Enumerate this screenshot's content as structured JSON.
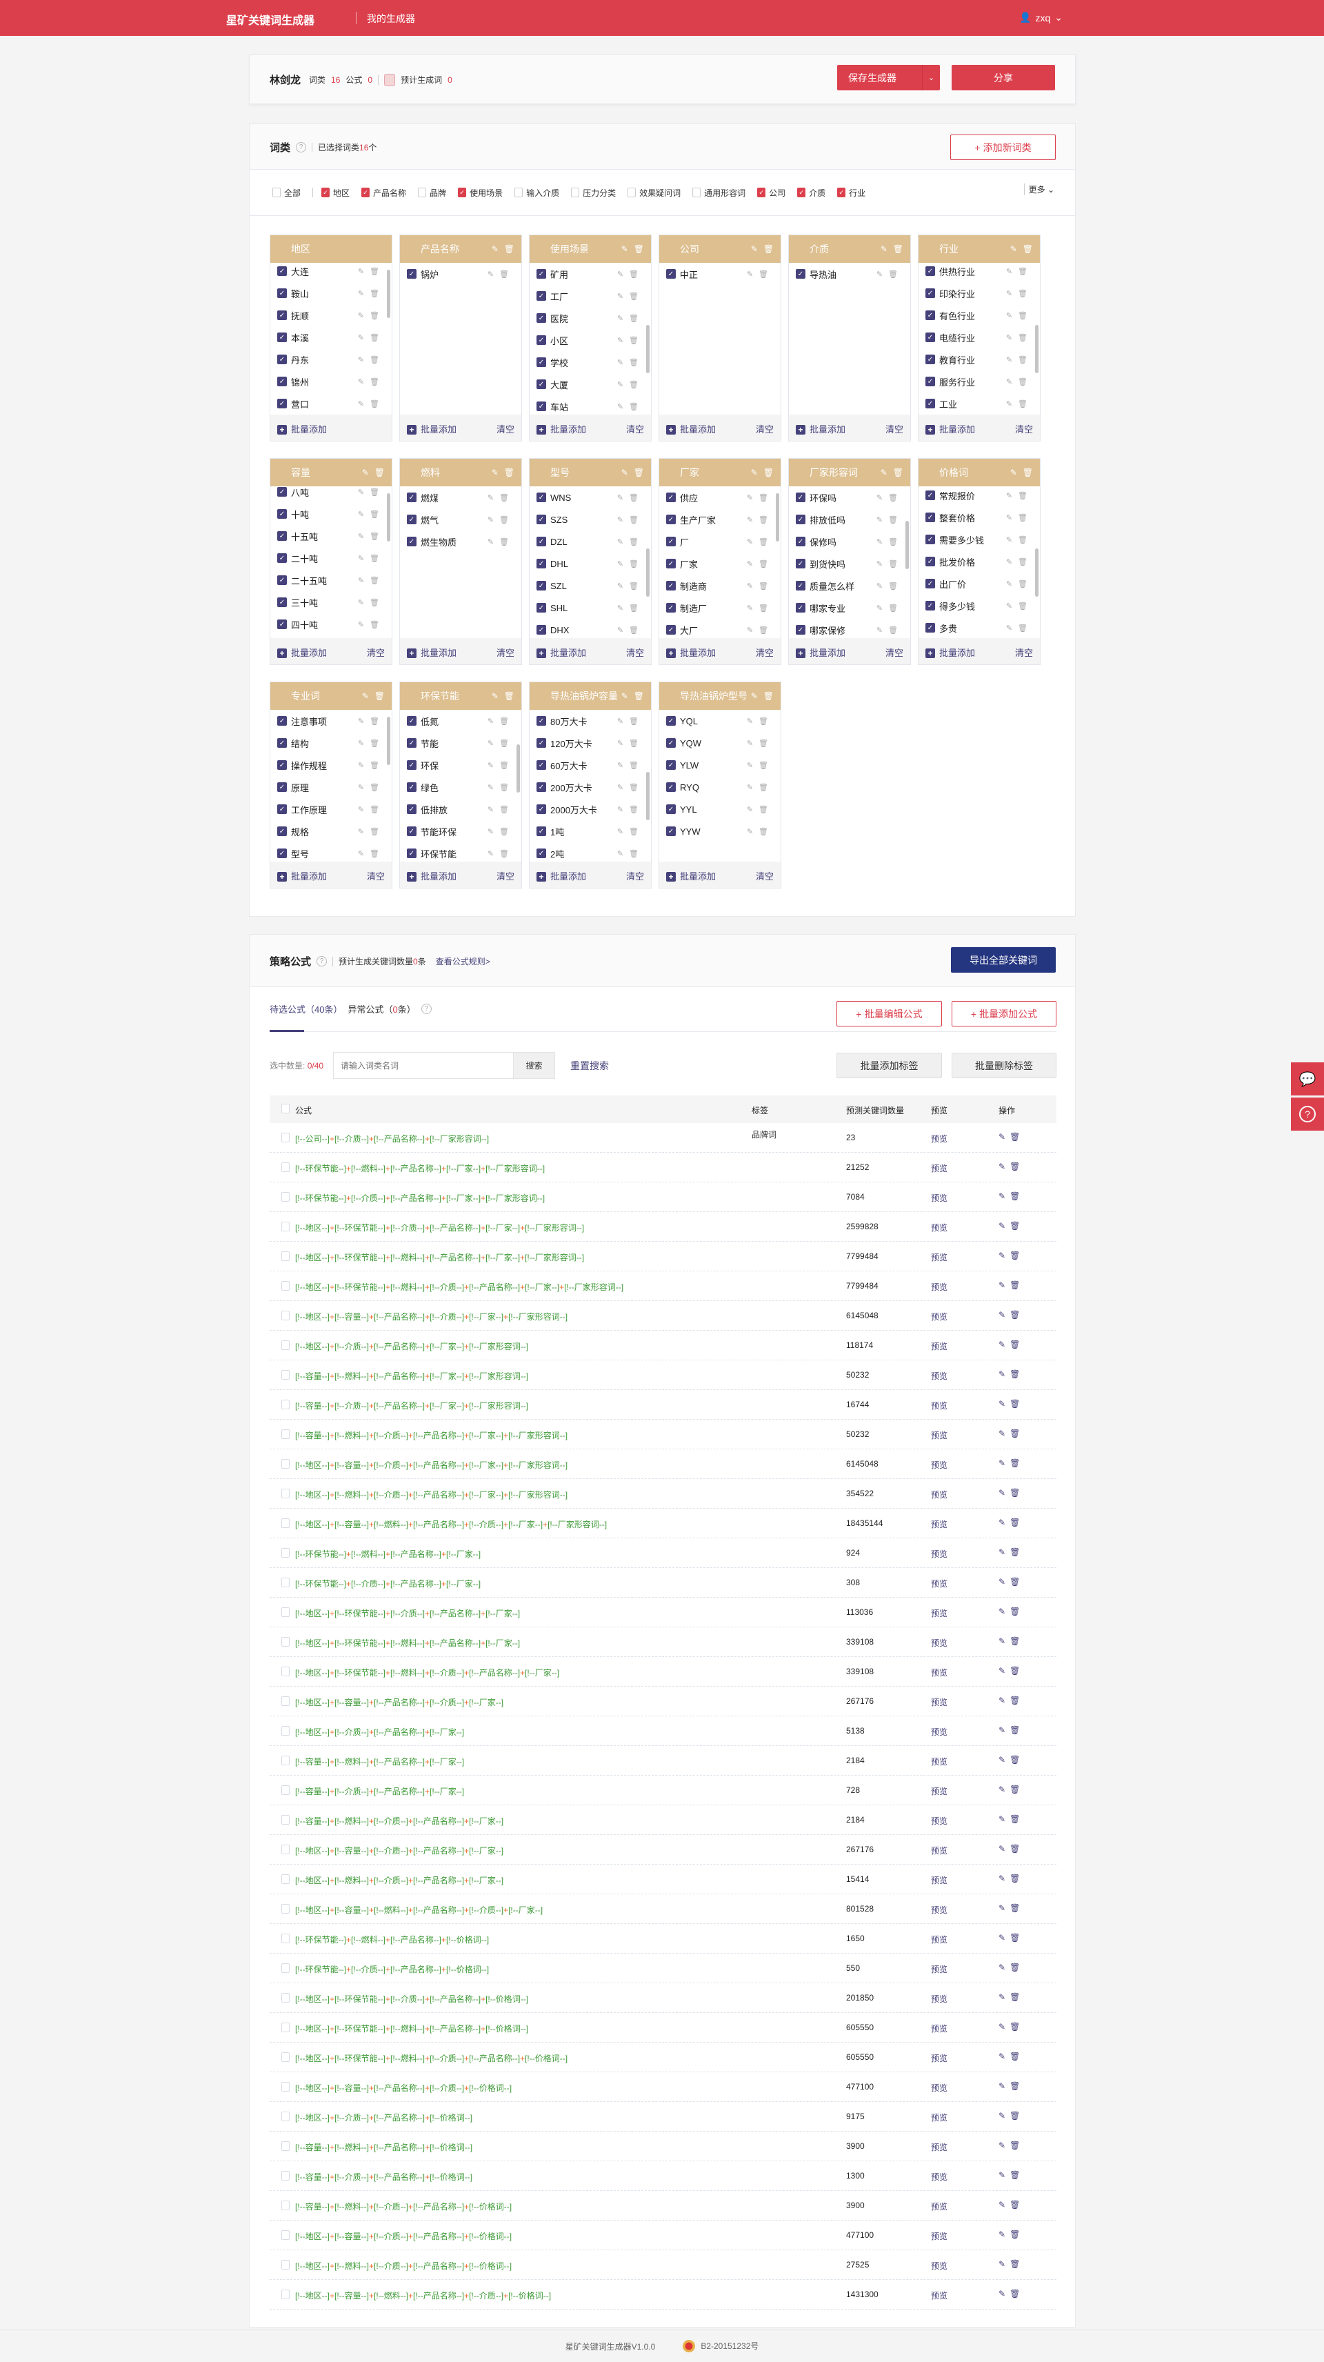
{
  "header": {
    "app_title": "星矿关键词生成器",
    "nav_link": "我的生成器",
    "user_name": "zxq",
    "accent_color": "#dc3f4c"
  },
  "generator": {
    "name": "林剑龙",
    "word_class_label": "词类",
    "word_class_count": "16",
    "formula_label": "公式",
    "formula_count": "0",
    "predicted_label": "预计生成词",
    "predicted_count": "0",
    "save_button": "保存生成器",
    "share_button": "分享"
  },
  "word_classes": {
    "title": "词类",
    "selected_text_prefix": "已选择词类",
    "selected_count": "16",
    "selected_text_suffix": "个",
    "add_button": "添加新词类",
    "more_label": "更多",
    "filters": [
      {
        "label": "全部",
        "checked": false
      },
      {
        "label": "地区",
        "checked": true
      },
      {
        "label": "产品名称",
        "checked": true
      },
      {
        "label": "品牌",
        "checked": false
      },
      {
        "label": "使用场景",
        "checked": true
      },
      {
        "label": "输入介质",
        "checked": false
      },
      {
        "label": "压力分类",
        "checked": false
      },
      {
        "label": "效果疑问词",
        "checked": false
      },
      {
        "label": "通用形容词",
        "checked": false
      },
      {
        "label": "公司",
        "checked": true
      },
      {
        "label": "介质",
        "checked": true
      },
      {
        "label": "行业",
        "checked": true
      }
    ],
    "batch_add_label": "批量添加",
    "clear_label": "清空",
    "cards": [
      {
        "title": "地区",
        "header_icons": false,
        "clear": false,
        "items": [
          "大连",
          "鞍山",
          "抚顺",
          "本溪",
          "丹东",
          "锦州",
          "营口"
        ]
      },
      {
        "title": "产品名称",
        "header_icons": true,
        "clear": true,
        "items": [
          "锅炉"
        ]
      },
      {
        "title": "使用场景",
        "header_icons": true,
        "clear": true,
        "items": [
          "矿用",
          "工厂",
          "医院",
          "小区",
          "学校",
          "大厦",
          "车站"
        ]
      },
      {
        "title": "公司",
        "header_icons": true,
        "clear": true,
        "items": [
          "中正"
        ]
      },
      {
        "title": "介质",
        "header_icons": true,
        "clear": true,
        "items": [
          "导热油"
        ]
      },
      {
        "title": "行业",
        "header_icons": true,
        "clear": true,
        "items": [
          "供热行业",
          "印染行业",
          "有色行业",
          "电缆行业",
          "教育行业",
          "服务行业",
          "工业"
        ]
      },
      {
        "title": "容量",
        "header_icons": true,
        "clear": true,
        "items": [
          "八吨",
          "十吨",
          "十五吨",
          "二十吨",
          "二十五吨",
          "三十吨",
          "四十吨"
        ]
      },
      {
        "title": "燃料",
        "header_icons": true,
        "clear": true,
        "items": [
          "燃煤",
          "燃气",
          "燃生物质"
        ]
      },
      {
        "title": "型号",
        "header_icons": true,
        "clear": true,
        "items": [
          "WNS",
          "SZS",
          "DZL",
          "DHL",
          "SZL",
          "SHL",
          "DHX"
        ]
      },
      {
        "title": "厂家",
        "header_icons": true,
        "clear": true,
        "items": [
          "供应",
          "生产厂家",
          "厂",
          "厂家",
          "制造商",
          "制造厂",
          "大厂"
        ]
      },
      {
        "title": "厂家形容词",
        "header_icons": true,
        "clear": true,
        "items": [
          "环保吗",
          "排放低吗",
          "保修吗",
          "到货快吗",
          "质量怎么样",
          "哪家专业",
          "哪家保修"
        ]
      },
      {
        "title": "价格词",
        "header_icons": true,
        "clear": true,
        "items": [
          "常规报价",
          "整套价格",
          "需要多少钱",
          "批发价格",
          "出厂价",
          "得多少钱",
          "多贵"
        ]
      },
      {
        "title": "专业词",
        "header_icons": true,
        "clear": true,
        "items": [
          "注意事项",
          "结构",
          "操作规程",
          "原理",
          "工作原理",
          "规格",
          "型号"
        ]
      },
      {
        "title": "环保节能",
        "header_icons": true,
        "clear": true,
        "items": [
          "低氮",
          "节能",
          "环保",
          "绿色",
          "低排放",
          "节能环保",
          "环保节能"
        ]
      },
      {
        "title": "导热油锅炉容量",
        "header_icons": true,
        "clear": true,
        "items": [
          "80万大卡",
          "120万大卡",
          "60万大卡",
          "200万大卡",
          "2000万大卡",
          "1吨",
          "2吨"
        ]
      },
      {
        "title": "导热油锅炉型号",
        "header_icons": true,
        "clear": true,
        "items": [
          "YQL",
          "YQW",
          "YLW",
          "RYQ",
          "YYL",
          "YYW"
        ]
      }
    ],
    "card_header_color": "#ddbf90",
    "checkbox_color": "#45417a"
  },
  "strategy": {
    "title": "策略公式",
    "predicted_prefix": "预计生成关键词数量",
    "predicted_count": "0",
    "predicted_suffix": "条",
    "rules_link": "查看公式规则>",
    "export_button": "导出全部关键词",
    "export_color": "#253680",
    "tab_pending": "待选公式（40条）",
    "tab_abnormal_prefix": "异常公式（",
    "tab_abnormal_count": "0",
    "tab_abnormal_suffix": "条）",
    "batch_edit_button": "批量编辑公式",
    "batch_add_button": "批量添加公式",
    "selected_label": "选中数量:",
    "selected_value": "0/40",
    "search_placeholder": "请输入词类名词",
    "search_button": "搜索",
    "reset_search": "重置搜索",
    "batch_add_tag": "批量添加标签",
    "batch_delete_tag": "批量删除标签",
    "columns": {
      "formula": "公式",
      "tag": "标签",
      "count": "预测关键词数量",
      "preview": "预览",
      "ops": "操作"
    },
    "preview_label": "预览",
    "rows": [
      {
        "formula": "[!--公司--]+[!--介质--]+[!--产品名称--]+[!--厂家形容词--]",
        "tag": "品牌词",
        "count": "23"
      },
      {
        "formula": "[!--环保节能--]+[!--燃料--]+[!--产品名称--]+[!--厂家--]+[!--厂家形容词--]",
        "tag": "",
        "count": "21252"
      },
      {
        "formula": "[!--环保节能--]+[!--介质--]+[!--产品名称--]+[!--厂家--]+[!--厂家形容词--]",
        "tag": "",
        "count": "7084"
      },
      {
        "formula": "[!--地区--]+[!--环保节能--]+[!--介质--]+[!--产品名称--]+[!--厂家--]+[!--厂家形容词--]",
        "tag": "",
        "count": "2599828"
      },
      {
        "formula": "[!--地区--]+[!--环保节能--]+[!--燃料--]+[!--产品名称--]+[!--厂家--]+[!--厂家形容词--]",
        "tag": "",
        "count": "7799484"
      },
      {
        "formula": "[!--地区--]+[!--环保节能--]+[!--燃料--]+[!--介质--]+[!--产品名称--]+[!--厂家--]+[!--厂家形容词--]",
        "tag": "",
        "count": "7799484"
      },
      {
        "formula": "[!--地区--]+[!--容量--]+[!--产品名称--]+[!--介质--]+[!--厂家--]+[!--厂家形容词--]",
        "tag": "",
        "count": "6145048"
      },
      {
        "formula": "[!--地区--]+[!--介质--]+[!--产品名称--]+[!--厂家--]+[!--厂家形容词--]",
        "tag": "",
        "count": "118174"
      },
      {
        "formula": "[!--容量--]+[!--燃料--]+[!--产品名称--]+[!--厂家--]+[!--厂家形容词--]",
        "tag": "",
        "count": "50232"
      },
      {
        "formula": "[!--容量--]+[!--介质--]+[!--产品名称--]+[!--厂家--]+[!--厂家形容词--]",
        "tag": "",
        "count": "16744"
      },
      {
        "formula": "[!--容量--]+[!--燃料--]+[!--介质--]+[!--产品名称--]+[!--厂家--]+[!--厂家形容词--]",
        "tag": "",
        "count": "50232"
      },
      {
        "formula": "[!--地区--]+[!--容量--]+[!--介质--]+[!--产品名称--]+[!--厂家--]+[!--厂家形容词--]",
        "tag": "",
        "count": "6145048"
      },
      {
        "formula": "[!--地区--]+[!--燃料--]+[!--介质--]+[!--产品名称--]+[!--厂家--]+[!--厂家形容词--]",
        "tag": "",
        "count": "354522"
      },
      {
        "formula": "[!--地区--]+[!--容量--]+[!--燃料--]+[!--产品名称--]+[!--介质--]+[!--厂家--]+[!--厂家形容词--]",
        "tag": "",
        "count": "18435144"
      },
      {
        "formula": "[!--环保节能--]+[!--燃料--]+[!--产品名称--]+[!--厂家--]",
        "tag": "",
        "count": "924"
      },
      {
        "formula": "[!--环保节能--]+[!--介质--]+[!--产品名称--]+[!--厂家--]",
        "tag": "",
        "count": "308"
      },
      {
        "formula": "[!--地区--]+[!--环保节能--]+[!--介质--]+[!--产品名称--]+[!--厂家--]",
        "tag": "",
        "count": "113036"
      },
      {
        "formula": "[!--地区--]+[!--环保节能--]+[!--燃料--]+[!--产品名称--]+[!--厂家--]",
        "tag": "",
        "count": "339108"
      },
      {
        "formula": "[!--地区--]+[!--环保节能--]+[!--燃料--]+[!--介质--]+[!--产品名称--]+[!--厂家--]",
        "tag": "",
        "count": "339108"
      },
      {
        "formula": "[!--地区--]+[!--容量--]+[!--产品名称--]+[!--介质--]+[!--厂家--]",
        "tag": "",
        "count": "267176"
      },
      {
        "formula": "[!--地区--]+[!--介质--]+[!--产品名称--]+[!--厂家--]",
        "tag": "",
        "count": "5138"
      },
      {
        "formula": "[!--容量--]+[!--燃料--]+[!--产品名称--]+[!--厂家--]",
        "tag": "",
        "count": "2184"
      },
      {
        "formula": "[!--容量--]+[!--介质--]+[!--产品名称--]+[!--厂家--]",
        "tag": "",
        "count": "728"
      },
      {
        "formula": "[!--容量--]+[!--燃料--]+[!--介质--]+[!--产品名称--]+[!--厂家--]",
        "tag": "",
        "count": "2184"
      },
      {
        "formula": "[!--地区--]+[!--容量--]+[!--介质--]+[!--产品名称--]+[!--厂家--]",
        "tag": "",
        "count": "267176"
      },
      {
        "formula": "[!--地区--]+[!--燃料--]+[!--介质--]+[!--产品名称--]+[!--厂家--]",
        "tag": "",
        "count": "15414"
      },
      {
        "formula": "[!--地区--]+[!--容量--]+[!--燃料--]+[!--产品名称--]+[!--介质--]+[!--厂家--]",
        "tag": "",
        "count": "801528"
      },
      {
        "formula": "[!--环保节能--]+[!--燃料--]+[!--产品名称--]+[!--价格词--]",
        "tag": "",
        "count": "1650"
      },
      {
        "formula": "[!--环保节能--]+[!--介质--]+[!--产品名称--]+[!--价格词--]",
        "tag": "",
        "count": "550"
      },
      {
        "formula": "[!--地区--]+[!--环保节能--]+[!--介质--]+[!--产品名称--]+[!--价格词--]",
        "tag": "",
        "count": "201850"
      },
      {
        "formula": "[!--地区--]+[!--环保节能--]+[!--燃料--]+[!--产品名称--]+[!--价格词--]",
        "tag": "",
        "count": "605550"
      },
      {
        "formula": "[!--地区--]+[!--环保节能--]+[!--燃料--]+[!--介质--]+[!--产品名称--]+[!--价格词--]",
        "tag": "",
        "count": "605550"
      },
      {
        "formula": "[!--地区--]+[!--容量--]+[!--产品名称--]+[!--介质--]+[!--价格词--]",
        "tag": "",
        "count": "477100"
      },
      {
        "formula": "[!--地区--]+[!--介质--]+[!--产品名称--]+[!--价格词--]",
        "tag": "",
        "count": "9175"
      },
      {
        "formula": "[!--容量--]+[!--燃料--]+[!--产品名称--]+[!--价格词--]",
        "tag": "",
        "count": "3900"
      },
      {
        "formula": "[!--容量--]+[!--介质--]+[!--产品名称--]+[!--价格词--]",
        "tag": "",
        "count": "1300"
      },
      {
        "formula": "[!--容量--]+[!--燃料--]+[!--介质--]+[!--产品名称--]+[!--价格词--]",
        "tag": "",
        "count": "3900"
      },
      {
        "formula": "[!--地区--]+[!--容量--]+[!--介质--]+[!--产品名称--]+[!--价格词--]",
        "tag": "",
        "count": "477100"
      },
      {
        "formula": "[!--地区--]+[!--燃料--]+[!--介质--]+[!--产品名称--]+[!--价格词--]",
        "tag": "",
        "count": "27525"
      },
      {
        "formula": "[!--地区--]+[!--容量--]+[!--燃料--]+[!--产品名称--]+[!--介质--]+[!--价格词--]",
        "tag": "",
        "count": "1431300"
      }
    ],
    "formula_color": "#3e9a37",
    "plus_color": "#f06a2a"
  },
  "floating": {
    "wechat_icon": "wechat-icon",
    "help_icon": "help-icon"
  },
  "footer": {
    "version": "星矿关键词生成器V1.0.0",
    "license": "B2-20151232号"
  }
}
